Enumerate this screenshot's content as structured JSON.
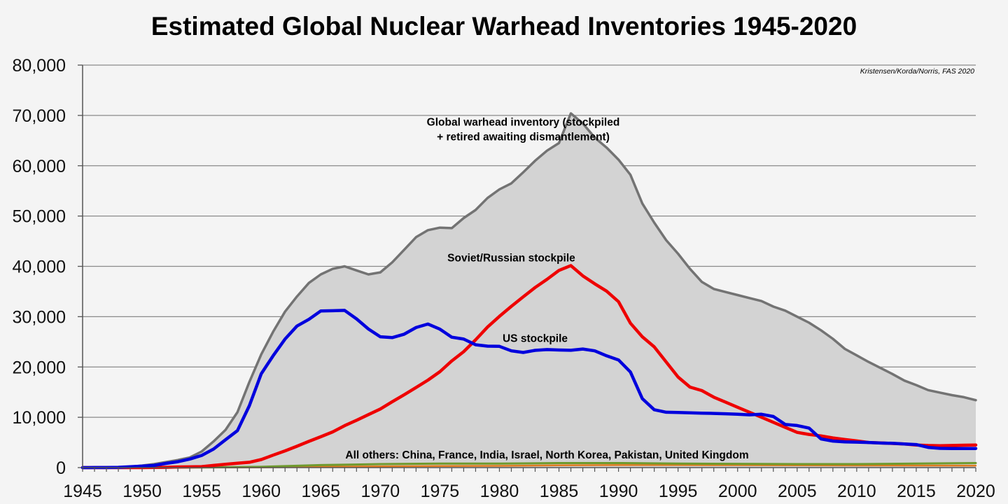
{
  "chart_data": {
    "type": "area",
    "title": "Estimated Global Nuclear Warhead Inventories 1945-2020",
    "credit": "Kristensen/Korda/Norris, FAS 2020",
    "xlabel": "",
    "ylabel": "",
    "xlim": [
      1945,
      2020
    ],
    "ylim": [
      0,
      80000
    ],
    "x_ticks": [
      "1945",
      "1950",
      "1955",
      "1960",
      "1965",
      "1970",
      "1975",
      "1980",
      "1985",
      "1990",
      "1995",
      "2000",
      "2005",
      "2010",
      "2015",
      "2020"
    ],
    "y_ticks": [
      "0",
      "10,000",
      "20,000",
      "30,000",
      "40,000",
      "50,000",
      "60,000",
      "70,000",
      "80,000"
    ],
    "grid": true,
    "legend": "none",
    "annotations": [
      {
        "lines": [
          "Global warhead inventory (stockpiled",
          "+ retired awaiting dismantlement)"
        ],
        "x": 1982,
        "y": 68000
      },
      {
        "lines": [
          "Soviet/Russian stockpile"
        ],
        "x": 1981,
        "y": 41000
      },
      {
        "lines": [
          "US stockpile"
        ],
        "x": 1983,
        "y": 25000
      },
      {
        "lines": [
          "All others: China, France, India, Israel, North Korea, Pakistan, United Kingdom"
        ],
        "x": 1984,
        "y": 1800
      }
    ],
    "series": [
      {
        "name": "Global warhead inventory (stockpiled + retired awaiting dismantlement)",
        "color": "#737373",
        "fill": "#d3d3d3",
        "x": [
          1945,
          1946,
          1947,
          1948,
          1949,
          1950,
          1951,
          1952,
          1953,
          1954,
          1955,
          1956,
          1957,
          1958,
          1959,
          1960,
          1961,
          1962,
          1963,
          1964,
          1965,
          1966,
          1967,
          1968,
          1969,
          1970,
          1971,
          1972,
          1973,
          1974,
          1975,
          1976,
          1977,
          1978,
          1979,
          1980,
          1981,
          1982,
          1983,
          1984,
          1985,
          1986,
          1987,
          1988,
          1989,
          1990,
          1991,
          1992,
          1993,
          1994,
          1995,
          1996,
          1997,
          1998,
          1999,
          2000,
          2001,
          2002,
          2003,
          2004,
          2005,
          2006,
          2007,
          2008,
          2009,
          2010,
          2011,
          2012,
          2013,
          2014,
          2015,
          2016,
          2017,
          2018,
          2019,
          2020
        ],
        "values": [
          2,
          9,
          13,
          50,
          170,
          400,
          700,
          1100,
          1500,
          2000,
          3200,
          5200,
          7500,
          11000,
          17000,
          22500,
          27000,
          31000,
          34000,
          36700,
          38400,
          39500,
          40000,
          39200,
          38400,
          38800,
          40800,
          43300,
          45800,
          47200,
          47700,
          47600,
          49600,
          51200,
          53600,
          55300,
          56500,
          58700,
          61000,
          63000,
          64500,
          70400,
          68400,
          65600,
          63600,
          61200,
          58200,
          52500,
          48700,
          45200,
          42500,
          39500,
          36900,
          35500,
          34900,
          34300,
          33700,
          33100,
          32000,
          31200,
          30000,
          28800,
          27300,
          25600,
          23600,
          22300,
          21000,
          19800,
          18600,
          17300,
          16400,
          15400,
          14900,
          14400,
          14000,
          13400
        ]
      },
      {
        "name": "US stockpile",
        "color": "#0000dd",
        "x": [
          1945,
          1946,
          1947,
          1948,
          1949,
          1950,
          1951,
          1952,
          1953,
          1954,
          1955,
          1956,
          1957,
          1958,
          1959,
          1960,
          1961,
          1962,
          1963,
          1964,
          1965,
          1966,
          1967,
          1968,
          1969,
          1970,
          1971,
          1972,
          1973,
          1974,
          1975,
          1976,
          1977,
          1978,
          1979,
          1980,
          1981,
          1982,
          1983,
          1984,
          1985,
          1986,
          1987,
          1988,
          1989,
          1990,
          1991,
          1992,
          1993,
          1994,
          1995,
          1996,
          1997,
          1998,
          1999,
          2000,
          2001,
          2002,
          2003,
          2004,
          2005,
          2006,
          2007,
          2008,
          2009,
          2010,
          2011,
          2012,
          2013,
          2014,
          2015,
          2016,
          2017,
          2018,
          2019,
          2020
        ],
        "values": [
          2,
          9,
          13,
          50,
          170,
          299,
          438,
          841,
          1169,
          1703,
          2422,
          3692,
          5543,
          7345,
          12298,
          18638,
          22229,
          25540,
          28133,
          29463,
          31139,
          31175,
          31255,
          29561,
          27552,
          26008,
          25830,
          26516,
          27835,
          28537,
          27519,
          25914,
          25542,
          24418,
          24138,
          24104,
          23208,
          22886,
          23305,
          23459,
          23368,
          23317,
          23575,
          23205,
          22217,
          21392,
          19008,
          13708,
          11511,
          11008,
          10953,
          10886,
          10829,
          10763,
          10698,
          10615,
          10491,
          10600,
          10157,
          8570,
          8360,
          7853,
          5709,
          5273,
          5113,
          5066,
          5000,
          4881,
          4825,
          4700,
          4571,
          4018,
          3822,
          3785,
          3805,
          3800
        ]
      },
      {
        "name": "Soviet/Russian stockpile",
        "color": "#ee0000",
        "x": [
          1945,
          1946,
          1947,
          1948,
          1949,
          1950,
          1951,
          1952,
          1953,
          1954,
          1955,
          1956,
          1957,
          1958,
          1959,
          1960,
          1961,
          1962,
          1963,
          1964,
          1965,
          1966,
          1967,
          1968,
          1969,
          1970,
          1971,
          1972,
          1973,
          1974,
          1975,
          1976,
          1977,
          1978,
          1979,
          1980,
          1981,
          1982,
          1983,
          1984,
          1985,
          1986,
          1987,
          1988,
          1989,
          1990,
          1991,
          1992,
          1993,
          1994,
          1995,
          1996,
          1997,
          1998,
          1999,
          2000,
          2001,
          2002,
          2003,
          2004,
          2005,
          2006,
          2007,
          2008,
          2009,
          2010,
          2011,
          2012,
          2013,
          2014,
          2015,
          2016,
          2017,
          2018,
          2019,
          2020
        ],
        "values": [
          0,
          0,
          0,
          0,
          1,
          5,
          25,
          50,
          120,
          150,
          200,
          426,
          660,
          869,
          1060,
          1605,
          2471,
          3322,
          4238,
          5221,
          6129,
          7089,
          8339,
          9399,
          10538,
          11643,
          13092,
          14478,
          15915,
          17385,
          19055,
          21205,
          23044,
          25393,
          27935,
          30062,
          32049,
          33952,
          35804,
          37431,
          39197,
          40159,
          38107,
          36538,
          35078,
          32980,
          28700,
          26000,
          24000,
          21000,
          18000,
          16000,
          15300,
          14000,
          13000,
          12000,
          11000,
          10000,
          9000,
          8000,
          7000,
          6600,
          6300,
          5900,
          5600,
          5300,
          5000,
          4900,
          4800,
          4700,
          4500,
          4400,
          4350,
          4400,
          4450,
          4500
        ]
      },
      {
        "name": "All others: China, France, India, Israel, North Korea, Pakistan, United Kingdom",
        "color": "#6f9a2e",
        "x": [
          1945,
          1950,
          1955,
          1960,
          1965,
          1970,
          1975,
          1980,
          1985,
          1990,
          1995,
          2000,
          2005,
          2010,
          2015,
          2020
        ],
        "values": [
          0,
          0,
          30,
          150,
          500,
          700,
          800,
          800,
          900,
          900,
          800,
          750,
          700,
          700,
          800,
          900
        ]
      },
      {
        "name": "All others (minor series)",
        "color": "#e07a1f",
        "x": [
          1945,
          1950,
          1955,
          1960,
          1965,
          1970,
          1975,
          1980,
          1985,
          1990,
          1995,
          2000,
          2005,
          2010,
          2015,
          2020
        ],
        "values": [
          0,
          0,
          10,
          40,
          150,
          250,
          300,
          350,
          450,
          500,
          500,
          480,
          450,
          420,
          400,
          380
        ]
      }
    ]
  }
}
